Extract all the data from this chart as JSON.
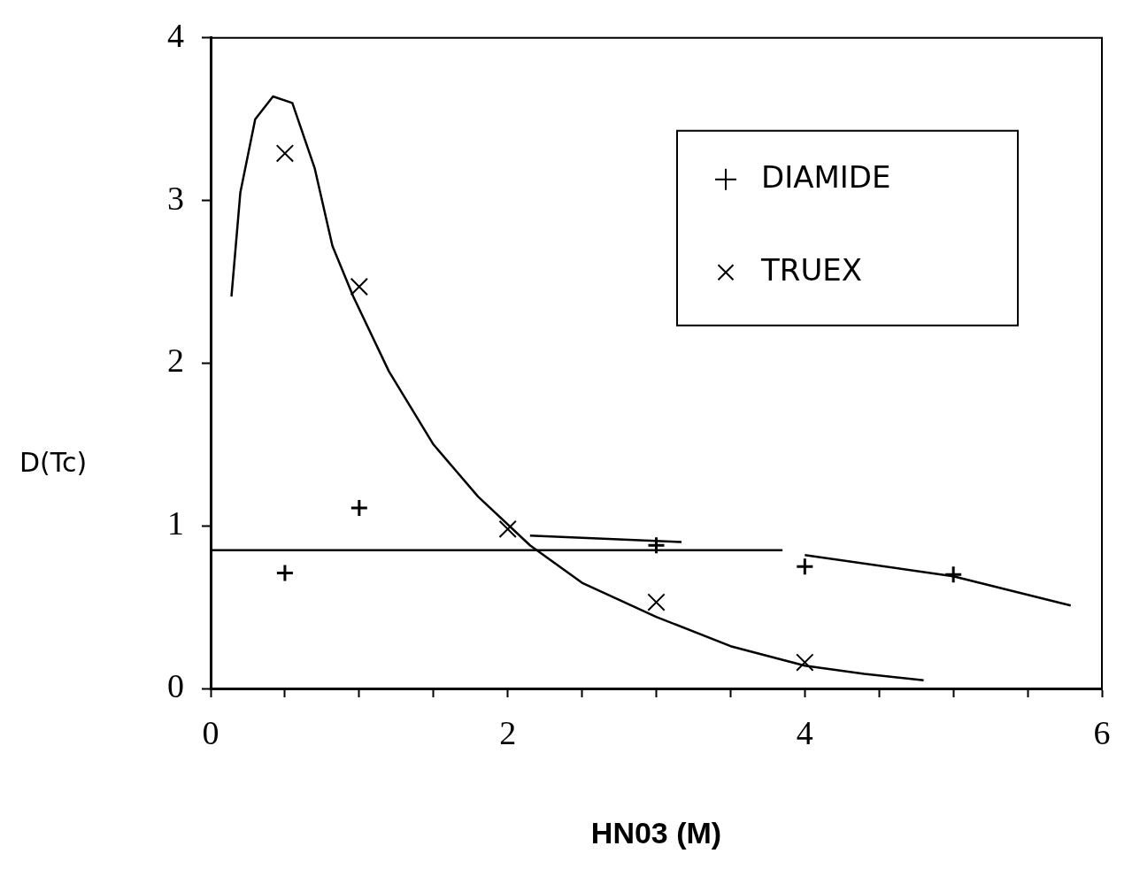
{
  "chart_data": {
    "type": "scatter",
    "xlabel": "HN03 (M)",
    "ylabel": "D(Tc)",
    "xlim": [
      0,
      6
    ],
    "ylim": [
      0,
      4
    ],
    "xticks": [
      0,
      {
        "value": 0.5,
        "label": null
      },
      {
        "value": 1,
        "label": null
      },
      {
        "value": 1.5,
        "label": null
      },
      2,
      {
        "value": 2.5,
        "label": null
      },
      {
        "value": 3,
        "label": null
      },
      {
        "value": 3.5,
        "label": null
      },
      4,
      {
        "value": 4.5,
        "label": null
      },
      {
        "value": 5,
        "label": null
      },
      {
        "value": 5.5,
        "label": null
      },
      6
    ],
    "yticks": [
      0,
      1,
      2,
      3,
      4
    ],
    "grid": false,
    "legend": "top right",
    "series": [
      {
        "name": "DIAMIDE",
        "marker": "cross",
        "color": "#000000",
        "x": [
          0.5,
          1,
          3,
          4,
          5
        ],
        "values": [
          0.71,
          1.11,
          0.88,
          0.75,
          0.7
        ]
      },
      {
        "name": "TRUEX",
        "marker": "x",
        "color": "#000000",
        "x": [
          0.5,
          1,
          2,
          3,
          4
        ],
        "values": [
          3.29,
          2.47,
          0.98,
          0.53,
          0.16
        ]
      },
      {
        "type": "line",
        "marker": "none",
        "color": "#000000",
        "x": [
          0.14,
          0.2,
          0.3,
          0.42,
          0.55,
          0.7,
          0.82,
          0.96,
          1.2,
          1.5,
          1.8,
          2.15,
          2.5,
          3,
          3.5,
          4,
          4.4,
          4.8
        ],
        "values": [
          2.41,
          3.05,
          3.5,
          3.64,
          3.6,
          3.2,
          2.72,
          2.41,
          1.95,
          1.5,
          1.18,
          0.88,
          0.65,
          0.44,
          0.26,
          0.14,
          0.09,
          0.05
        ]
      },
      {
        "type": "line",
        "marker": "none",
        "color": "#000000",
        "x": [
          2.15,
          3.17,
          3.5,
          4,
          5,
          5.79
        ],
        "values": [
          0.94,
          0.9,
          null,
          0.82,
          0.69,
          0.51
        ]
      },
      {
        "type": "line",
        "marker": "none",
        "color": "#000000",
        "x": [
          0,
          3.85
        ],
        "values": [
          0.85,
          0.85
        ]
      }
    ]
  }
}
